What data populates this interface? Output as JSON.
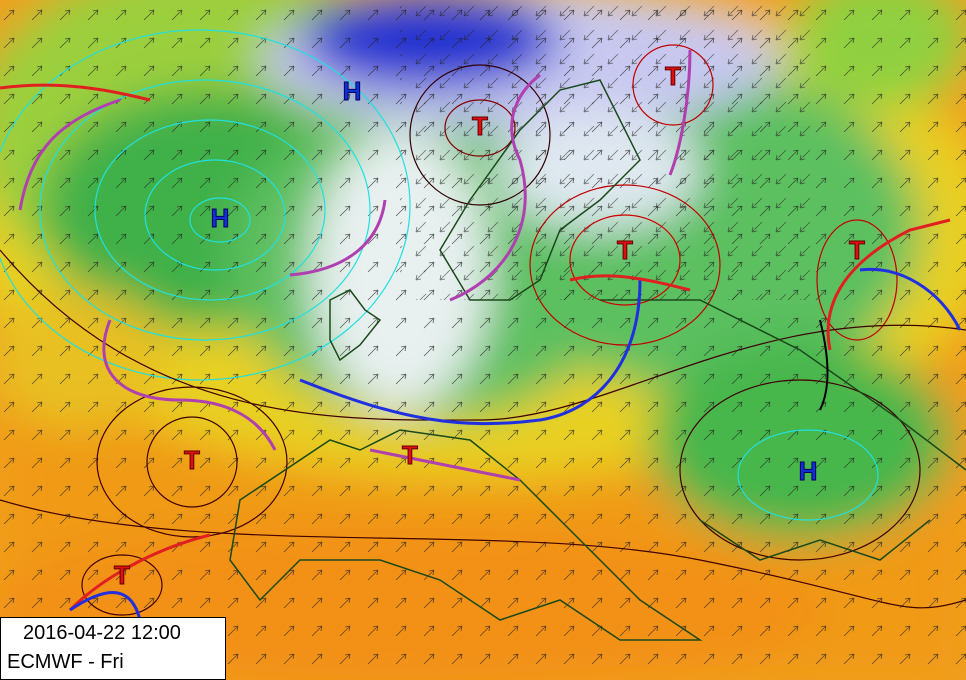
{
  "pressure_centers": [
    {
      "label": "H"
    },
    {
      "label": "H"
    },
    {
      "label": "T"
    },
    {
      "label": "T"
    },
    {
      "label": "T"
    },
    {
      "label": "T"
    },
    {
      "label": "T"
    },
    {
      "label": "T"
    },
    {
      "label": "H"
    },
    {
      "label": "T"
    }
  ],
  "info_box": {
    "timestamp": "2016-04-22 12:00",
    "model": "ECMWF - Fri"
  }
}
